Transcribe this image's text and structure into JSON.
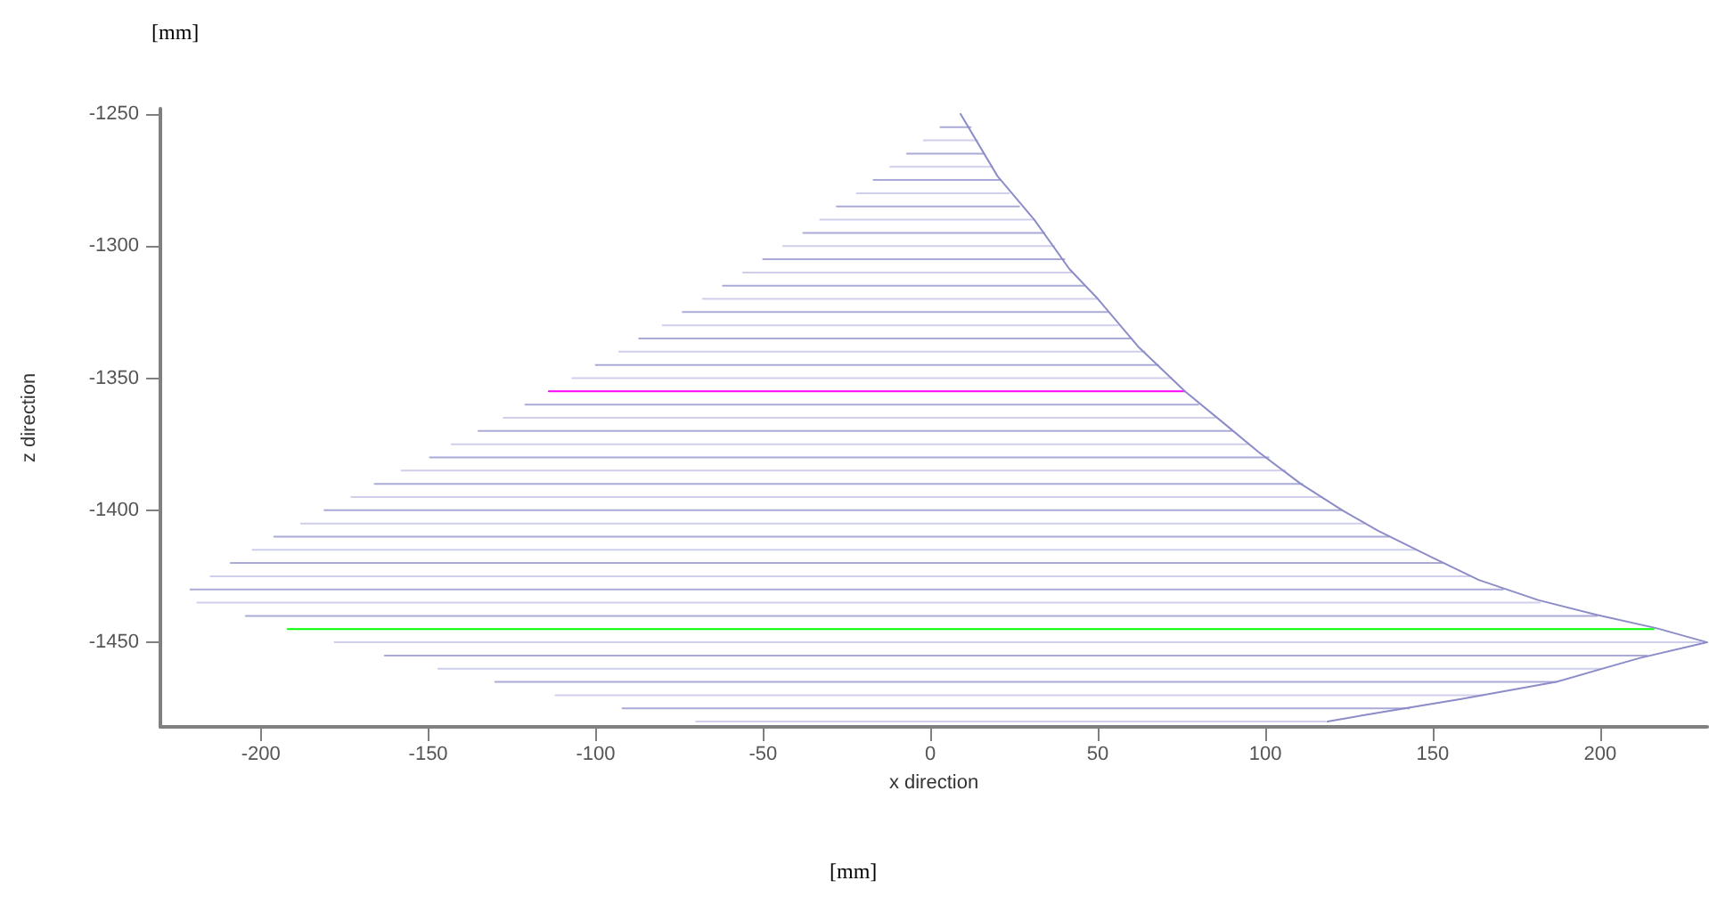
{
  "chart_data": {
    "type": "line",
    "xlabel": "x direction",
    "ylabel": "z direction",
    "annotations": [
      "[mm]",
      "[mm]"
    ],
    "xlim": [
      -230,
      232
    ],
    "ylim": [
      -1482,
      -1248
    ],
    "xticks": [
      -200,
      -150,
      -100,
      -50,
      0,
      50,
      100,
      150,
      200
    ],
    "yticks": [
      -1250,
      -1300,
      -1350,
      -1400,
      -1450
    ],
    "grid": false,
    "marker": "none",
    "line_style": "solid",
    "series": [
      {
        "color": "#aaaad8",
        "x": [
          3,
          12
        ],
        "values": [
          -1255,
          -1255
        ]
      },
      {
        "color": "#cfcfeb",
        "x": [
          -2,
          14
        ],
        "values": [
          -1260,
          -1260
        ]
      },
      {
        "color": "#aaaad8",
        "x": [
          -7,
          16
        ],
        "values": [
          -1265,
          -1265
        ]
      },
      {
        "color": "#cfcfeb",
        "x": [
          -12,
          18.5
        ],
        "values": [
          -1270,
          -1270
        ]
      },
      {
        "color": "#aaaad8",
        "x": [
          -17,
          21
        ],
        "values": [
          -1275,
          -1275
        ]
      },
      {
        "color": "#cfcfeb",
        "x": [
          -22,
          23.5
        ],
        "values": [
          -1280,
          -1280
        ]
      },
      {
        "color": "#aaaad8",
        "x": [
          -28,
          26.5
        ],
        "values": [
          -1285,
          -1285
        ]
      },
      {
        "color": "#cfcfeb",
        "x": [
          -33,
          31
        ],
        "values": [
          -1290,
          -1290
        ]
      },
      {
        "color": "#aaaad8",
        "x": [
          -38,
          34
        ],
        "values": [
          -1295,
          -1295
        ]
      },
      {
        "color": "#cfcfeb",
        "x": [
          -44,
          37
        ],
        "values": [
          -1300,
          -1300
        ]
      },
      {
        "color": "#aaaad8",
        "x": [
          -50,
          40
        ],
        "values": [
          -1305,
          -1305
        ]
      },
      {
        "color": "#cfcfeb",
        "x": [
          -56,
          42
        ],
        "values": [
          -1310,
          -1310
        ]
      },
      {
        "color": "#aaaad8",
        "x": [
          -62,
          46
        ],
        "values": [
          -1315,
          -1315
        ]
      },
      {
        "color": "#cfcfeb",
        "x": [
          -68,
          50
        ],
        "values": [
          -1320,
          -1320
        ]
      },
      {
        "color": "#aaaad8",
        "x": [
          -74,
          53
        ],
        "values": [
          -1325,
          -1325
        ]
      },
      {
        "color": "#cfcfeb",
        "x": [
          -80,
          56
        ],
        "values": [
          -1330,
          -1330
        ]
      },
      {
        "color": "#aaaad8",
        "x": [
          -87,
          60
        ],
        "values": [
          -1335,
          -1335
        ]
      },
      {
        "color": "#cfcfeb",
        "x": [
          -93,
          64
        ],
        "values": [
          -1340,
          -1340
        ]
      },
      {
        "color": "#aaaad8",
        "x": [
          -100,
          68
        ],
        "values": [
          -1345,
          -1345
        ]
      },
      {
        "color": "#cfcfeb",
        "x": [
          -107,
          72
        ],
        "values": [
          -1350,
          -1350
        ]
      },
      {
        "color": "#ff00ff",
        "x": [
          -114,
          76
        ],
        "values": [
          -1355,
          -1355
        ]
      },
      {
        "color": "#aaaad8",
        "x": [
          -121,
          80
        ],
        "values": [
          -1360,
          -1360
        ]
      },
      {
        "color": "#cfcfeb",
        "x": [
          -127.5,
          85
        ],
        "values": [
          -1365,
          -1365
        ]
      },
      {
        "color": "#aaaad8",
        "x": [
          -135,
          90
        ],
        "values": [
          -1370,
          -1370
        ]
      },
      {
        "color": "#cfcfeb",
        "x": [
          -143,
          95
        ],
        "values": [
          -1375,
          -1375
        ]
      },
      {
        "color": "#aaaad8",
        "x": [
          -149.5,
          101
        ],
        "values": [
          -1380,
          -1380
        ]
      },
      {
        "color": "#cfcfeb",
        "x": [
          -158,
          106
        ],
        "values": [
          -1385,
          -1385
        ]
      },
      {
        "color": "#aaaad8",
        "x": [
          -166,
          111
        ],
        "values": [
          -1390,
          -1390
        ]
      },
      {
        "color": "#cfcfeb",
        "x": [
          -173,
          117
        ],
        "values": [
          -1395,
          -1395
        ]
      },
      {
        "color": "#aaaad8",
        "x": [
          -181,
          123
        ],
        "values": [
          -1400,
          -1400
        ]
      },
      {
        "color": "#cfcfeb",
        "x": [
          -188,
          130
        ],
        "values": [
          -1405,
          -1405
        ]
      },
      {
        "color": "#aaaad8",
        "x": [
          -196,
          137
        ],
        "values": [
          -1410,
          -1410
        ]
      },
      {
        "color": "#cfcfeb",
        "x": [
          -202.5,
          145
        ],
        "values": [
          -1415,
          -1415
        ]
      },
      {
        "color": "#aaaad8",
        "x": [
          -209,
          153
        ],
        "values": [
          -1420,
          -1420
        ]
      },
      {
        "color": "#cfcfeb",
        "x": [
          -215,
          161
        ],
        "values": [
          -1425,
          -1425
        ]
      },
      {
        "color": "#aaaad8",
        "x": [
          -221,
          171
        ],
        "values": [
          -1430,
          -1430
        ]
      },
      {
        "color": "#cfcfeb",
        "x": [
          -219,
          182
        ],
        "values": [
          -1435,
          -1435
        ]
      },
      {
        "color": "#aaaad8",
        "x": [
          -204.5,
          199
        ],
        "values": [
          -1440,
          -1440
        ]
      },
      {
        "color": "#00ff00",
        "x": [
          -192,
          216
        ],
        "values": [
          -1445,
          -1445
        ]
      },
      {
        "color": "#cfcfeb",
        "x": [
          -178,
          230
        ],
        "values": [
          -1450,
          -1450
        ]
      },
      {
        "color": "#aaaad8",
        "x": [
          -163,
          214
        ],
        "values": [
          -1455,
          -1455
        ]
      },
      {
        "color": "#cfcfeb",
        "x": [
          -147,
          200
        ],
        "values": [
          -1460,
          -1460
        ]
      },
      {
        "color": "#aaaad8",
        "x": [
          -130,
          187
        ],
        "values": [
          -1465,
          -1465
        ]
      },
      {
        "color": "#cfcfeb",
        "x": [
          -112,
          165
        ],
        "values": [
          -1470,
          -1470
        ]
      },
      {
        "color": "#aaaad8",
        "x": [
          -92,
          143
        ],
        "values": [
          -1475,
          -1475
        ]
      },
      {
        "color": "#cfcfeb",
        "x": [
          -70,
          118
        ],
        "values": [
          -1480,
          -1480
        ]
      },
      {
        "color": "#8c8cc8",
        "x": [
          9,
          20,
          31,
          41.5,
          50,
          62,
          76,
          88.5,
          98,
          110.6,
          123,
          133.7,
          149.6,
          163.8,
          181.5,
          199,
          217,
          232,
          211.7,
          186.9,
          158.5,
          132,
          118.6
        ],
        "values": [
          -1250,
          -1273.5,
          -1290,
          -1308.7,
          -1320,
          -1338,
          -1355,
          -1368,
          -1378,
          -1390,
          -1400,
          -1407.8,
          -1417.7,
          -1426.4,
          -1434,
          -1439.6,
          -1444.7,
          -1450,
          -1456,
          -1465,
          -1471.5,
          -1477,
          -1480
        ]
      }
    ]
  }
}
